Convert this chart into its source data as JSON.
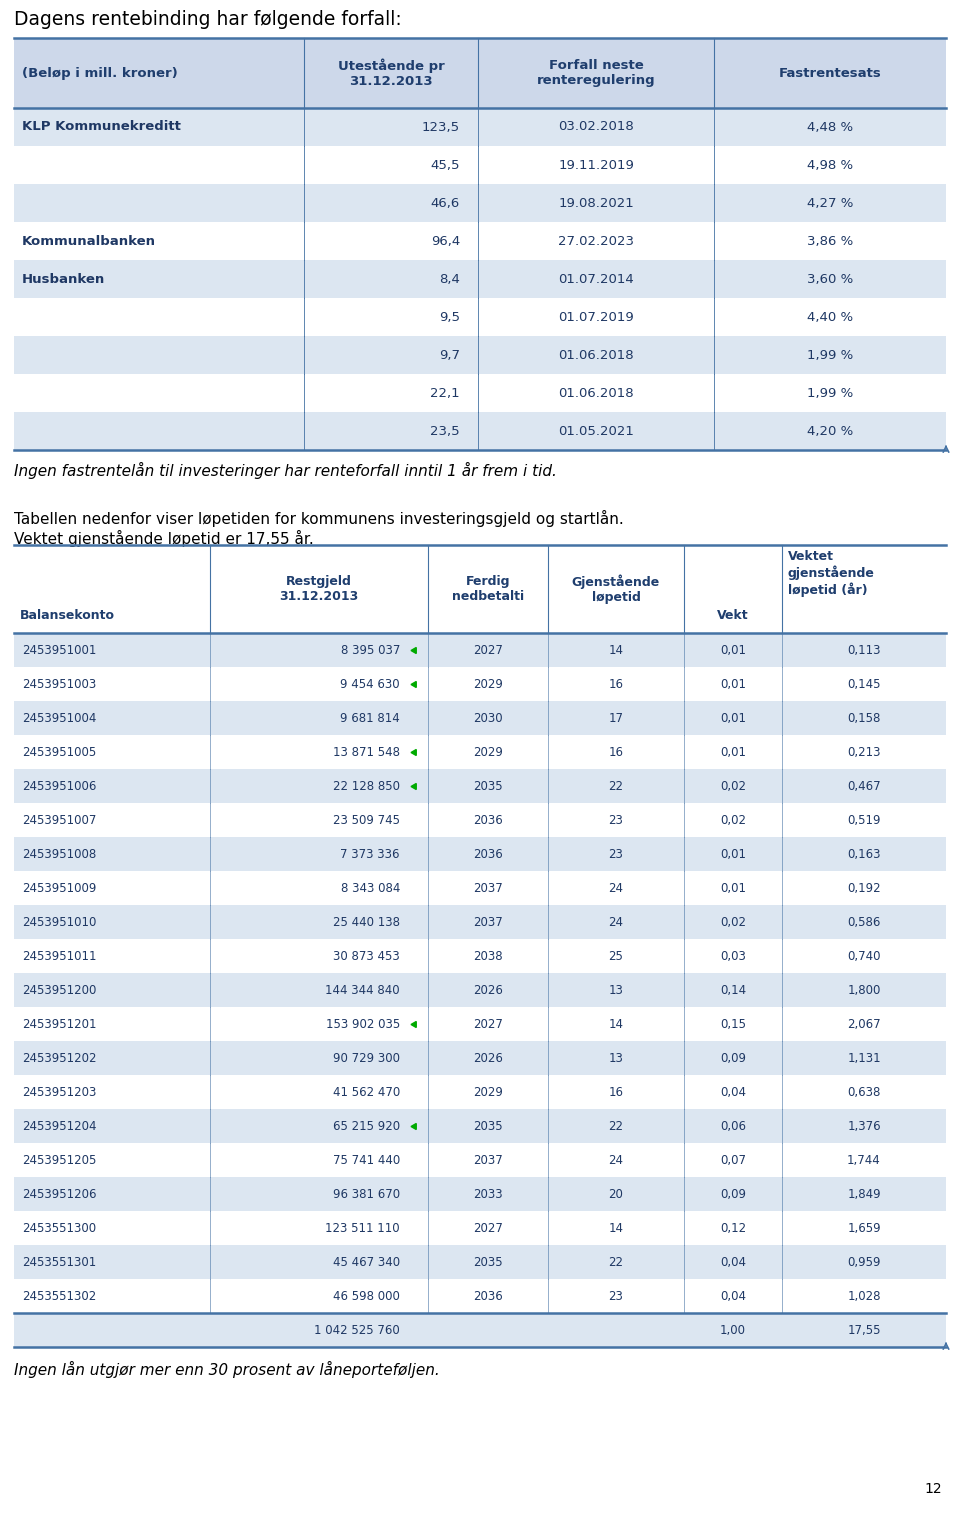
{
  "title": "Dagens rentebinding har følgende forfall:",
  "table1_header": [
    "(Beløp i mill. kroner)",
    "Utestående pr\n31.12.2013",
    "Forfall neste\nrenteregulering",
    "Fastrentesats"
  ],
  "table1_rows": [
    [
      "KLP Kommunekreditt",
      "123,5",
      "03.02.2018",
      "4,48 %"
    ],
    [
      "",
      "45,5",
      "19.11.2019",
      "4,98 %"
    ],
    [
      "",
      "46,6",
      "19.08.2021",
      "4,27 %"
    ],
    [
      "Kommunalbanken",
      "96,4",
      "27.02.2023",
      "3,86 %"
    ],
    [
      "Husbanken",
      "8,4",
      "01.07.2014",
      "3,60 %"
    ],
    [
      "",
      "9,5",
      "01.07.2019",
      "4,40 %"
    ],
    [
      "",
      "9,7",
      "01.06.2018",
      "1,99 %"
    ],
    [
      "",
      "22,1",
      "01.06.2018",
      "1,99 %"
    ],
    [
      "",
      "23,5",
      "01.05.2021",
      "4,20 %"
    ]
  ],
  "text1": "Ingen fastrentelån til investeringer har renteforfall inntil 1 år frem i tid.",
  "text2": "Tabellen nedenfor viser løpetiden for kommunens investeringsgjeld og startlån.\nVektet gjenstående løpetid er 17,55 år.",
  "table2_rows": [
    [
      "2453951001",
      "8 395 037",
      "2027",
      "14",
      "0,01",
      "0,113"
    ],
    [
      "2453951003",
      "9 454 630",
      "2029",
      "16",
      "0,01",
      "0,145"
    ],
    [
      "2453951004",
      "9 681 814",
      "2030",
      "17",
      "0,01",
      "0,158"
    ],
    [
      "2453951005",
      "13 871 548",
      "2029",
      "16",
      "0,01",
      "0,213"
    ],
    [
      "2453951006",
      "22 128 850",
      "2035",
      "22",
      "0,02",
      "0,467"
    ],
    [
      "2453951007",
      "23 509 745",
      "2036",
      "23",
      "0,02",
      "0,519"
    ],
    [
      "2453951008",
      "7 373 336",
      "2036",
      "23",
      "0,01",
      "0,163"
    ],
    [
      "2453951009",
      "8 343 084",
      "2037",
      "24",
      "0,01",
      "0,192"
    ],
    [
      "2453951010",
      "25 440 138",
      "2037",
      "24",
      "0,02",
      "0,586"
    ],
    [
      "2453951011",
      "30 873 453",
      "2038",
      "25",
      "0,03",
      "0,740"
    ],
    [
      "2453951200",
      "144 344 840",
      "2026",
      "13",
      "0,14",
      "1,800"
    ],
    [
      "2453951201",
      "153 902 035",
      "2027",
      "14",
      "0,15",
      "2,067"
    ],
    [
      "2453951202",
      "90 729 300",
      "2026",
      "13",
      "0,09",
      "1,131"
    ],
    [
      "2453951203",
      "41 562 470",
      "2029",
      "16",
      "0,04",
      "0,638"
    ],
    [
      "2453951204",
      "65 215 920",
      "2035",
      "22",
      "0,06",
      "1,376"
    ],
    [
      "2453951205",
      "75 741 440",
      "2037",
      "24",
      "0,07",
      "1,744"
    ],
    [
      "2453951206",
      "96 381 670",
      "2033",
      "20",
      "0,09",
      "1,849"
    ],
    [
      "2453551300",
      "123 511 110",
      "2027",
      "14",
      "0,12",
      "1,659"
    ],
    [
      "2453551301",
      "45 467 340",
      "2035",
      "22",
      "0,04",
      "0,959"
    ],
    [
      "2453551302",
      "46 598 000",
      "2036",
      "23",
      "0,04",
      "1,028"
    ]
  ],
  "table2_total": [
    "",
    "1 042 525 760",
    "",
    "",
    "1,00",
    "17,55"
  ],
  "text3": "Ingen lån utgjør mer enn 30 prosent av låneporteføljen.",
  "page_num": "12",
  "header_bg": "#cdd8ea",
  "row_bg_blue": "#dce6f1",
  "row_bg_white": "#ffffff",
  "header_text_color": "#1f3e6e",
  "data_text_color": "#1f3864",
  "border_color": "#4472a4",
  "green_marker_rows": [
    0,
    1,
    3,
    4,
    11,
    14
  ],
  "green_color": "#00aa00",
  "fig_width": 9.6,
  "fig_height": 15.14,
  "dpi": 100
}
